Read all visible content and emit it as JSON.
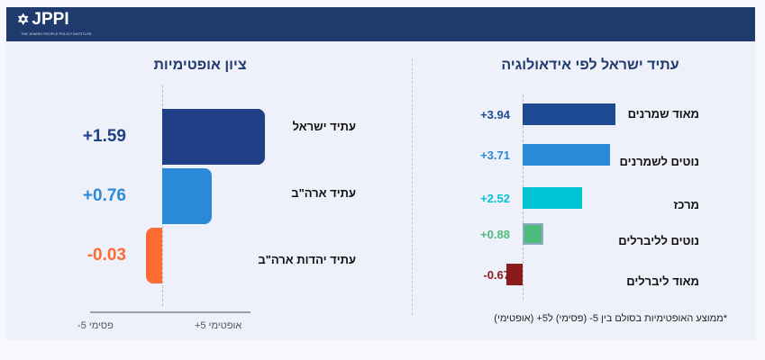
{
  "logo": {
    "text": "JPPI",
    "subtitle": "THE JEWISH PEOPLE POLICY INSTITUTE"
  },
  "chart_data": [
    {
      "type": "bar",
      "title": "ציון אופטימיות",
      "orientation": "horizontal",
      "categories": [
        "עתיד ישראל",
        "עתיד ארה\"ב",
        "עתיד יהדות ארה\"ב"
      ],
      "values": [
        1.59,
        0.76,
        -0.03
      ],
      "labels": [
        "+1.59",
        "+0.76",
        "-0.03"
      ],
      "colors": [
        "#1f3f86",
        "#2b8ad8",
        "#ff6b33"
      ],
      "axis": {
        "min_label": "-5  פסימי",
        "max_label": "+5 אופטימי"
      },
      "xlim": [
        -5,
        5
      ]
    },
    {
      "type": "bar",
      "title": "עתיד ישראל לפי אידאולוגיה",
      "orientation": "horizontal",
      "categories": [
        "מאוד שמרנים",
        "נוטים לשמרנים",
        "מרכז",
        "נוטים לליברלים",
        "מאוד ליברלים"
      ],
      "values": [
        3.94,
        3.71,
        2.52,
        0.88,
        -0.67
      ],
      "labels": [
        "+3.94",
        "+3.71",
        "+2.52",
        "+0.88",
        "-0.67"
      ],
      "colors": [
        "#1e4a94",
        "#2b8ad8",
        "#00c4d4",
        "#4dbb7a",
        "#8b1a1a"
      ],
      "note": "*ממוצע האופטימיות בסולם בין 5- (פסימי) ל5+ (אופטימי)",
      "xlim": [
        -5,
        5
      ]
    }
  ]
}
